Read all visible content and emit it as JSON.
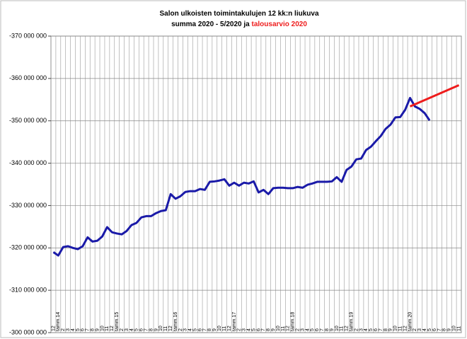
{
  "chart_data": {
    "type": "line",
    "title": {
      "line1": "Salon ulkoisten toimintakulujen 12 kk:n liukuva",
      "line2": "summa 2020 - 5/2020 ja",
      "line2_highlight": "talousarvio 2020"
    },
    "categories": [
      "12",
      "tamm.14",
      "2",
      "3",
      "4",
      "5",
      "6",
      "7",
      "8",
      "9",
      "10",
      "11",
      "12",
      "tamm.15",
      "2",
      "3",
      "4",
      "5",
      "6",
      "7",
      "8",
      "9",
      "10",
      "11",
      "12",
      "tamm.16",
      "2",
      "3",
      "4",
      "5",
      "6",
      "7",
      "8",
      "9",
      "10",
      "11",
      "12",
      "tamm.17",
      "2",
      "3",
      "4",
      "5",
      "6",
      "7",
      "8",
      "9",
      "10",
      "11",
      "12",
      "tamm.18",
      "2",
      "3",
      "4",
      "5",
      "6",
      "7",
      "8",
      "9",
      "10",
      "11",
      "12",
      "tamm.19",
      "2",
      "3",
      "4",
      "5",
      "6",
      "7",
      "8",
      "9",
      "10",
      "11",
      "12",
      "tamm.20",
      "2",
      "3",
      "4",
      "5",
      "6",
      "7",
      "8",
      "9",
      "10",
      "11"
    ],
    "series": [
      {
        "color": "#1a1aa8",
        "values": [
          -319000000,
          -318200000,
          -320200000,
          -320400000,
          -320000000,
          -319700000,
          -320400000,
          -322500000,
          -321500000,
          -321700000,
          -322700000,
          -324900000,
          -323700000,
          -323400000,
          -323200000,
          -324000000,
          -325400000,
          -325900000,
          -327200000,
          -327500000,
          -327500000,
          -328200000,
          -328700000,
          -328900000,
          -332700000,
          -331600000,
          -332200000,
          -333200000,
          -333400000,
          -333400000,
          -333900000,
          -333700000,
          -335600000,
          -335700000,
          -335900000,
          -336200000,
          -334700000,
          -335400000,
          -334700000,
          -335400000,
          -335200000,
          -335700000,
          -333100000,
          -333700000,
          -332700000,
          -334100000,
          -334200000,
          -334200000,
          -334100000,
          -334100000,
          -334400000,
          -334200000,
          -334900000,
          -335200000,
          -335600000,
          -335600000,
          -335600000,
          -335700000,
          -336700000,
          -335600000,
          -338400000,
          -339200000,
          -340900000,
          -341100000,
          -343100000,
          -343900000,
          -345200000,
          -346400000,
          -348100000,
          -349100000,
          -350800000,
          -350900000,
          -352600000,
          -355400000,
          -353400000,
          -352800000,
          -351800000,
          -350100000,
          null,
          null,
          null,
          null,
          null,
          null
        ]
      },
      {
        "color": "#ee1c1c",
        "values": [
          null,
          null,
          null,
          null,
          null,
          null,
          null,
          null,
          null,
          null,
          null,
          null,
          null,
          null,
          null,
          null,
          null,
          null,
          null,
          null,
          null,
          null,
          null,
          null,
          null,
          null,
          null,
          null,
          null,
          null,
          null,
          null,
          null,
          null,
          null,
          null,
          null,
          null,
          null,
          null,
          null,
          null,
          null,
          null,
          null,
          null,
          null,
          null,
          null,
          null,
          null,
          null,
          null,
          null,
          null,
          null,
          null,
          null,
          null,
          null,
          null,
          null,
          null,
          null,
          null,
          null,
          null,
          null,
          null,
          null,
          null,
          null,
          null,
          -353400000,
          -353900000,
          -354400000,
          -354900000,
          -355400000,
          -355900000,
          -356400000,
          -356900000,
          -357400000,
          -357900000,
          -358400000
        ]
      }
    ],
    "ylim": [
      -300000000,
      -370000000
    ],
    "yticks": [
      {
        "value": -300000000,
        "label": "-300 000 000"
      },
      {
        "value": -310000000,
        "label": "-310 000 000"
      },
      {
        "value": -320000000,
        "label": "-320 000 000"
      },
      {
        "value": -330000000,
        "label": "-330 000 000"
      },
      {
        "value": -340000000,
        "label": "-340 000 000"
      },
      {
        "value": -350000000,
        "label": "-350 000 000"
      },
      {
        "value": -360000000,
        "label": "-360 000 000"
      },
      {
        "value": -370000000,
        "label": "-370 000 000"
      }
    ],
    "grid": true
  }
}
